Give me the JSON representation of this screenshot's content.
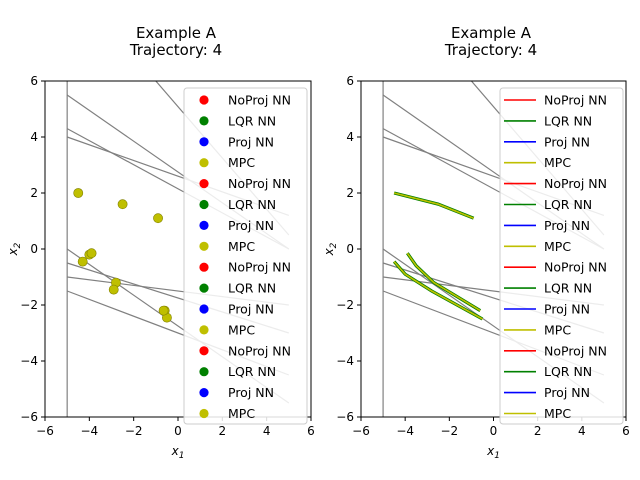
{
  "chart_data": [
    {
      "type": "scatter",
      "title": "Example A\nTrajectory: 4",
      "xlabel": "x1",
      "ylabel": "x2",
      "xlim": [
        -6,
        6
      ],
      "ylim": [
        -6,
        6
      ],
      "xticks": [
        -6,
        -4,
        -2,
        0,
        2,
        4,
        6
      ],
      "yticks": [
        -6,
        -4,
        -2,
        0,
        2,
        4,
        6
      ],
      "grid": false,
      "legend_position": "right",
      "legend": [
        "NoProj NN",
        "LQR NN",
        "Proj NN",
        "MPC",
        "NoProj NN",
        "LQR NN",
        "Proj NN",
        "MPC",
        "NoProj NN",
        "LQR NN",
        "Proj NN",
        "MPC",
        "NoProj NN",
        "LQR NN",
        "Proj NN",
        "MPC"
      ],
      "legend_colors": [
        "#ff0000",
        "#008000",
        "#0000ff",
        "#bfbf00",
        "#ff0000",
        "#008000",
        "#0000ff",
        "#bfbf00",
        "#ff0000",
        "#008000",
        "#0000ff",
        "#bfbf00",
        "#ff0000",
        "#008000",
        "#0000ff",
        "#bfbf00"
      ],
      "constraint_lines": [
        [
          [
            -5,
            -6
          ],
          [
            -5,
            6
          ]
        ],
        [
          [
            -5,
            5.5
          ],
          [
            5,
            0
          ]
        ],
        [
          [
            -5,
            4.3
          ],
          [
            5,
            0
          ]
        ],
        [
          [
            -5,
            4.0
          ],
          [
            5,
            1.2
          ]
        ],
        [
          [
            -1,
            6
          ],
          [
            5,
            0.5
          ]
        ],
        [
          [
            -5,
            0
          ],
          [
            5,
            -5.5
          ]
        ],
        [
          [
            -5,
            -0.5
          ],
          [
            5,
            -3
          ]
        ],
        [
          [
            -5,
            -1.0
          ],
          [
            5,
            -2
          ]
        ],
        [
          [
            -5,
            -1.5
          ],
          [
            5,
            -4.5
          ]
        ]
      ],
      "series": [
        {
          "values": [
            [
              -4.5,
              2.0
            ],
            [
              -2.5,
              1.6
            ],
            [
              -0.9,
              1.1
            ],
            [
              -4.3,
              -0.45
            ],
            [
              -4.0,
              -0.2
            ],
            [
              -3.9,
              -0.15
            ],
            [
              -2.8,
              -1.2
            ],
            [
              -2.9,
              -1.45
            ],
            [
              -0.6,
              -2.2
            ],
            [
              -0.5,
              -2.45
            ],
            [
              -0.65,
              -2.2
            ]
          ]
        }
      ]
    },
    {
      "type": "line",
      "title": "Example A\nTrajectory: 4",
      "xlabel": "x1",
      "ylabel": "x2",
      "xlim": [
        -6,
        6
      ],
      "ylim": [
        -6,
        6
      ],
      "xticks": [
        -6,
        -4,
        -2,
        0,
        2,
        4,
        6
      ],
      "yticks": [
        -6,
        -4,
        -2,
        0,
        2,
        4,
        6
      ],
      "grid": false,
      "legend_position": "right",
      "legend": [
        "NoProj NN",
        "LQR NN",
        "Proj NN",
        "MPC",
        "NoProj NN",
        "LQR NN",
        "Proj NN",
        "MPC",
        "NoProj NN",
        "LQR NN",
        "Proj NN",
        "MPC",
        "NoProj NN",
        "LQR NN",
        "Proj NN",
        "MPC"
      ],
      "legend_colors": [
        "#ff0000",
        "#008000",
        "#0000ff",
        "#bfbf00",
        "#ff0000",
        "#008000",
        "#0000ff",
        "#bfbf00",
        "#ff0000",
        "#008000",
        "#0000ff",
        "#bfbf00",
        "#ff0000",
        "#008000",
        "#0000ff",
        "#bfbf00"
      ],
      "constraint_lines": [
        [
          [
            -5,
            -6
          ],
          [
            -5,
            6
          ]
        ],
        [
          [
            -5,
            5.5
          ],
          [
            5,
            0
          ]
        ],
        [
          [
            -5,
            4.3
          ],
          [
            5,
            0
          ]
        ],
        [
          [
            -5,
            4.0
          ],
          [
            5,
            1.2
          ]
        ],
        [
          [
            -1,
            6
          ],
          [
            5,
            0.5
          ]
        ],
        [
          [
            -5,
            0
          ],
          [
            5,
            -5.5
          ]
        ],
        [
          [
            -5,
            -0.5
          ],
          [
            5,
            -3
          ]
        ],
        [
          [
            -5,
            -1.0
          ],
          [
            5,
            -2
          ]
        ],
        [
          [
            -5,
            -1.5
          ],
          [
            5,
            -4.5
          ]
        ]
      ],
      "series": [
        {
          "values": [
            [
              -4.5,
              2.0
            ],
            [
              -2.5,
              1.6
            ],
            [
              -0.9,
              1.1
            ]
          ]
        },
        {
          "values": [
            [
              -4.5,
              -0.45
            ],
            [
              -4.0,
              -0.9
            ],
            [
              -2.8,
              -1.5
            ],
            [
              -0.5,
              -2.5
            ]
          ]
        },
        {
          "values": [
            [
              -3.9,
              -0.15
            ],
            [
              -3.5,
              -0.6
            ],
            [
              -2.7,
              -1.2
            ],
            [
              -0.6,
              -2.2
            ]
          ]
        }
      ]
    }
  ]
}
